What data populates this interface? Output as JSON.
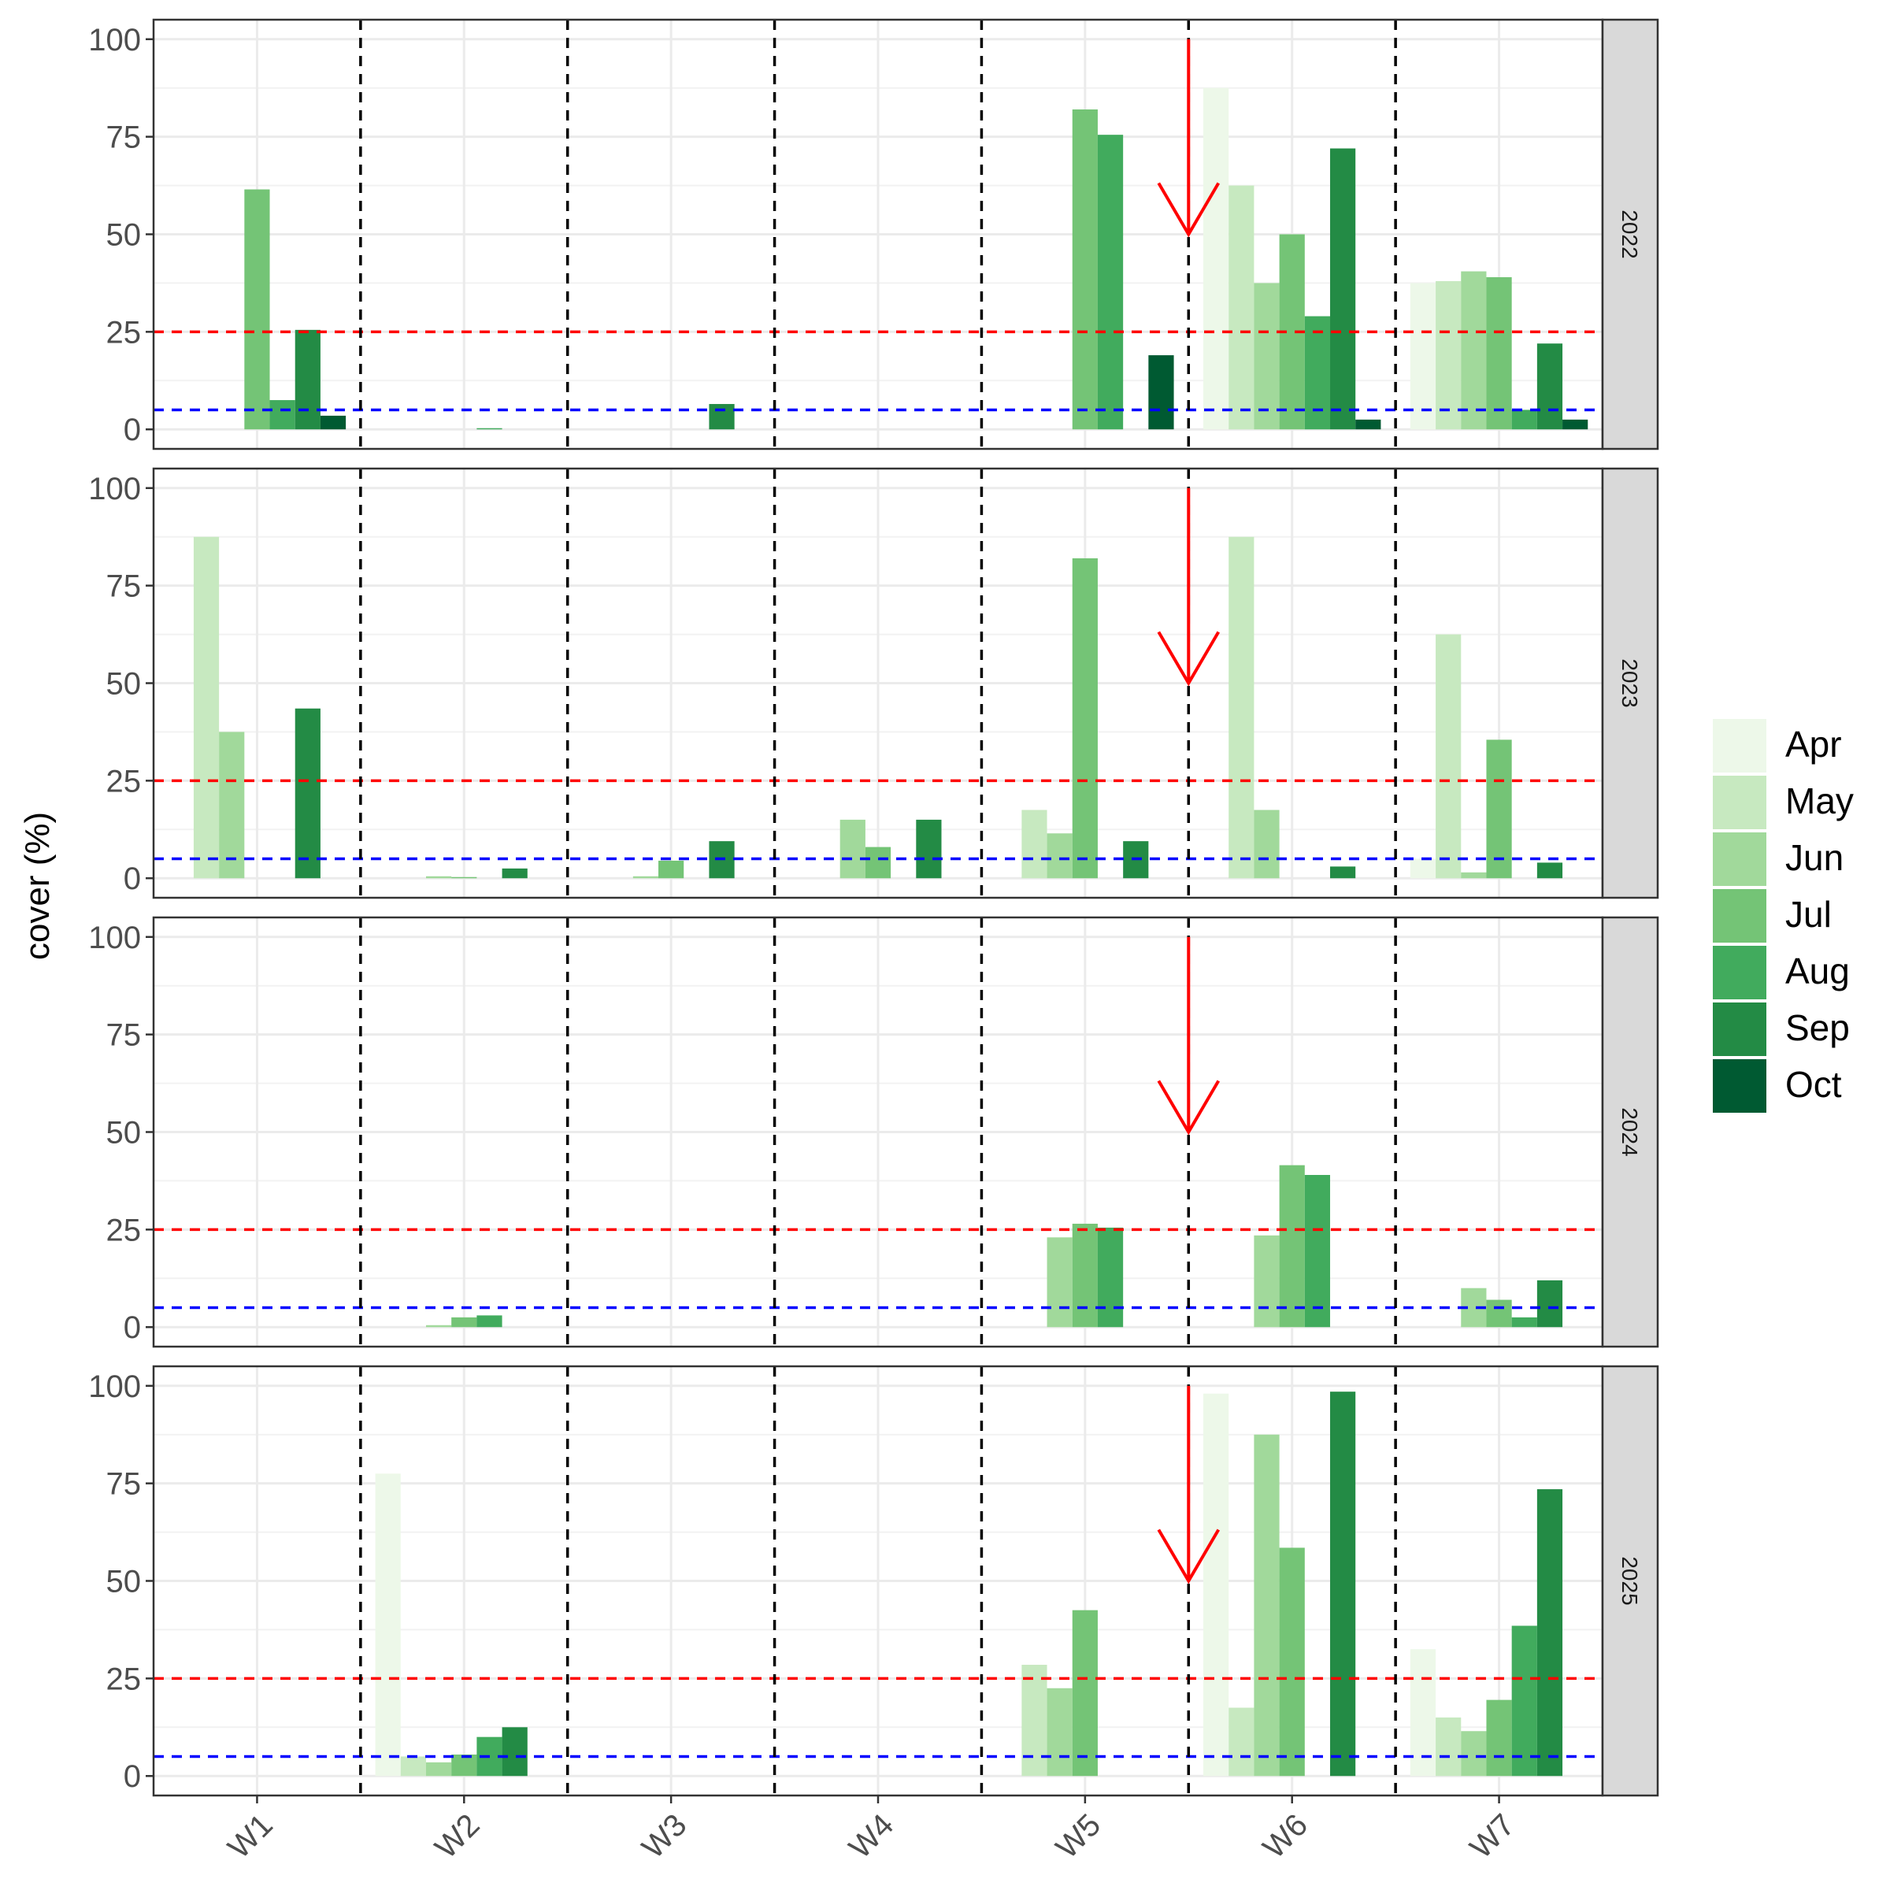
{
  "chart_data": {
    "type": "bar",
    "ylabel": "cover (%)",
    "xlabel": "",
    "ylim": [
      -5,
      105
    ],
    "yticks": [
      "0",
      "25",
      "50",
      "75",
      "100"
    ],
    "grid": true,
    "legend_position": "right",
    "categories": [
      "W1",
      "W2",
      "W3",
      "W4",
      "W5",
      "W6",
      "W7"
    ],
    "months": [
      {
        "name": "Apr",
        "color": "#EDF8E9"
      },
      {
        "name": "May",
        "color": "#C7E9C0"
      },
      {
        "name": "Jun",
        "color": "#A1D99B"
      },
      {
        "name": "Jul",
        "color": "#74C476"
      },
      {
        "name": "Aug",
        "color": "#41AB5D"
      },
      {
        "name": "Sep",
        "color": "#238B45"
      },
      {
        "name": "Oct",
        "color": "#005A32"
      }
    ],
    "reference_lines": [
      {
        "y": 25,
        "color": "#FF0000",
        "style": "dashed"
      },
      {
        "y": 5,
        "color": "#0000FF",
        "style": "dashed"
      }
    ],
    "divider_color": "#000000",
    "arrow": {
      "at": "between W5 and W6",
      "from_y": 100,
      "to_y": 50,
      "color": "#FF0000"
    },
    "panels": [
      {
        "label": "2022",
        "values": [
          [
            null,
            null,
            null,
            61.5,
            7.5,
            25.5,
            3.5
          ],
          [
            null,
            null,
            null,
            null,
            0.3,
            null,
            null
          ],
          [
            null,
            null,
            null,
            null,
            null,
            6.5,
            null
          ],
          [
            null,
            null,
            null,
            null,
            null,
            null,
            null
          ],
          [
            null,
            null,
            null,
            82,
            75.5,
            null,
            19
          ],
          [
            87.5,
            62.5,
            37.5,
            50,
            29,
            72,
            2.5
          ],
          [
            37.5,
            38,
            40.5,
            39,
            5,
            22,
            2.5
          ]
        ]
      },
      {
        "label": "2023",
        "values": [
          [
            null,
            87.5,
            37.5,
            null,
            null,
            43.5,
            null
          ],
          [
            null,
            null,
            0.5,
            0.3,
            null,
            2.5,
            null
          ],
          [
            null,
            null,
            0.5,
            4.5,
            null,
            9.5,
            null
          ],
          [
            null,
            null,
            15,
            8,
            null,
            15,
            null
          ],
          [
            null,
            17.5,
            11.5,
            82,
            null,
            9.5,
            null
          ],
          [
            null,
            87.5,
            17.5,
            null,
            null,
            3,
            null
          ],
          [
            5,
            62.5,
            1.5,
            35.5,
            null,
            4,
            null
          ]
        ]
      },
      {
        "label": "2024",
        "values": [
          [
            null,
            null,
            null,
            null,
            null,
            null,
            null
          ],
          [
            null,
            null,
            0.5,
            2.5,
            3,
            null,
            null
          ],
          [
            null,
            null,
            null,
            null,
            null,
            null,
            null
          ],
          [
            null,
            null,
            null,
            null,
            null,
            null,
            null
          ],
          [
            null,
            null,
            23,
            26.5,
            25.5,
            null,
            null
          ],
          [
            null,
            null,
            23.5,
            41.5,
            39,
            null,
            null
          ],
          [
            null,
            null,
            10,
            7,
            2.5,
            12,
            null
          ]
        ]
      },
      {
        "label": "2025",
        "values": [
          [
            null,
            null,
            null,
            null,
            null,
            null,
            null
          ],
          [
            77.5,
            5,
            3.5,
            5.5,
            10,
            12.5,
            null
          ],
          [
            null,
            null,
            null,
            null,
            null,
            null,
            null
          ],
          [
            null,
            null,
            null,
            null,
            null,
            null,
            null
          ],
          [
            null,
            28.5,
            22.5,
            42.5,
            null,
            null,
            null
          ],
          [
            98,
            17.5,
            87.5,
            58.5,
            null,
            98.5,
            null
          ],
          [
            32.5,
            15,
            11.5,
            19.5,
            38.5,
            73.5,
            null
          ]
        ]
      }
    ]
  }
}
